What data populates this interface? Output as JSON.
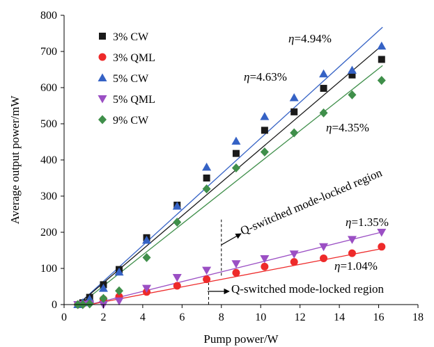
{
  "chart_data": {
    "type": "scatter",
    "title": "",
    "xlabel": "Pump power/W",
    "ylabel": "Average output power/mW",
    "xlim": [
      0,
      18
    ],
    "ylim": [
      0,
      800
    ],
    "xticks": [
      0,
      2,
      4,
      6,
      8,
      10,
      12,
      14,
      16,
      18
    ],
    "yticks": [
      0,
      100,
      200,
      300,
      400,
      500,
      600,
      700,
      800
    ],
    "grid": false,
    "legend_position": "top-left",
    "series": [
      {
        "name": "3% CW",
        "marker": "square",
        "color": "#1a1a1a",
        "x": [
          0.7,
          0.95,
          1.3,
          2.0,
          2.8,
          4.2,
          5.75,
          7.25,
          8.75,
          10.2,
          11.7,
          13.2,
          14.65,
          16.15
        ],
        "y": [
          0,
          5,
          20,
          55,
          97,
          185,
          275,
          350,
          418,
          482,
          533,
          598,
          635,
          678
        ]
      },
      {
        "name": "3% QML",
        "marker": "circle",
        "color": "#ee2a2a",
        "x": [
          0.7,
          0.95,
          1.3,
          2.0,
          2.8,
          4.2,
          5.75,
          7.25,
          8.75,
          10.2,
          11.7,
          13.2,
          14.65,
          16.15
        ],
        "y": [
          0,
          2,
          5,
          15,
          22,
          35,
          52,
          70,
          88,
          105,
          118,
          128,
          142,
          160
        ]
      },
      {
        "name": "5% CW",
        "marker": "triangle-up",
        "color": "#3562c5",
        "x": [
          0.7,
          0.95,
          1.3,
          2.0,
          2.8,
          4.2,
          5.75,
          7.25,
          8.75,
          10.2,
          11.7,
          13.2,
          14.65,
          16.15
        ],
        "y": [
          0,
          5,
          15,
          45,
          90,
          178,
          272,
          380,
          452,
          520,
          572,
          638,
          648,
          715
        ]
      },
      {
        "name": "5% QML",
        "marker": "triangle-down",
        "color": "#9b4fc4",
        "x": [
          0.7,
          0.95,
          1.3,
          2.0,
          2.8,
          4.2,
          5.75,
          7.25,
          8.75,
          10.2,
          11.7,
          13.2,
          14.65,
          16.15
        ],
        "y": [
          0,
          0,
          2,
          0,
          10,
          45,
          75,
          95,
          113,
          127,
          140,
          160,
          180,
          200
        ]
      },
      {
        "name": "9% CW",
        "marker": "diamond",
        "color": "#3f8f4a",
        "x": [
          0.7,
          0.95,
          1.3,
          2.0,
          2.8,
          4.2,
          5.75,
          7.25,
          8.75,
          10.2,
          11.7,
          13.2,
          14.65,
          16.15
        ],
        "y": [
          0,
          0,
          2,
          17,
          38,
          130,
          228,
          320,
          378,
          422,
          475,
          530,
          580,
          620
        ]
      }
    ],
    "fit_lines": [
      {
        "color": "#3562c5",
        "x": [
          0.7,
          16.2
        ],
        "y": [
          0,
          767
        ]
      },
      {
        "color": "#1a1a1a",
        "x": [
          0.7,
          16.2
        ],
        "y": [
          0,
          718
        ]
      },
      {
        "color": "#3f8f4a",
        "x": [
          0.8,
          16.2
        ],
        "y": [
          0,
          661
        ]
      },
      {
        "color": "#9b4fc4",
        "x": [
          1.3,
          16.2
        ],
        "y": [
          0,
          201
        ]
      },
      {
        "color": "#ee2a2a",
        "x": [
          1.3,
          16.2
        ],
        "y": [
          0,
          155
        ]
      }
    ],
    "threshold_lines": [
      {
        "x": 8.0,
        "y": [
          80,
          235
        ]
      },
      {
        "x": 7.35,
        "y": [
          0,
          60
        ]
      }
    ],
    "annotations": {
      "eta_494": "=4.94%",
      "eta_463": "=4.63%",
      "eta_435": "=4.35%",
      "eta_135": "=1.35%",
      "eta_104": "=1.04%",
      "eta_symbol": "η",
      "region_upper": "Q-switched mode-locked region",
      "region_lower": "Q-switched mode-locked region"
    }
  }
}
